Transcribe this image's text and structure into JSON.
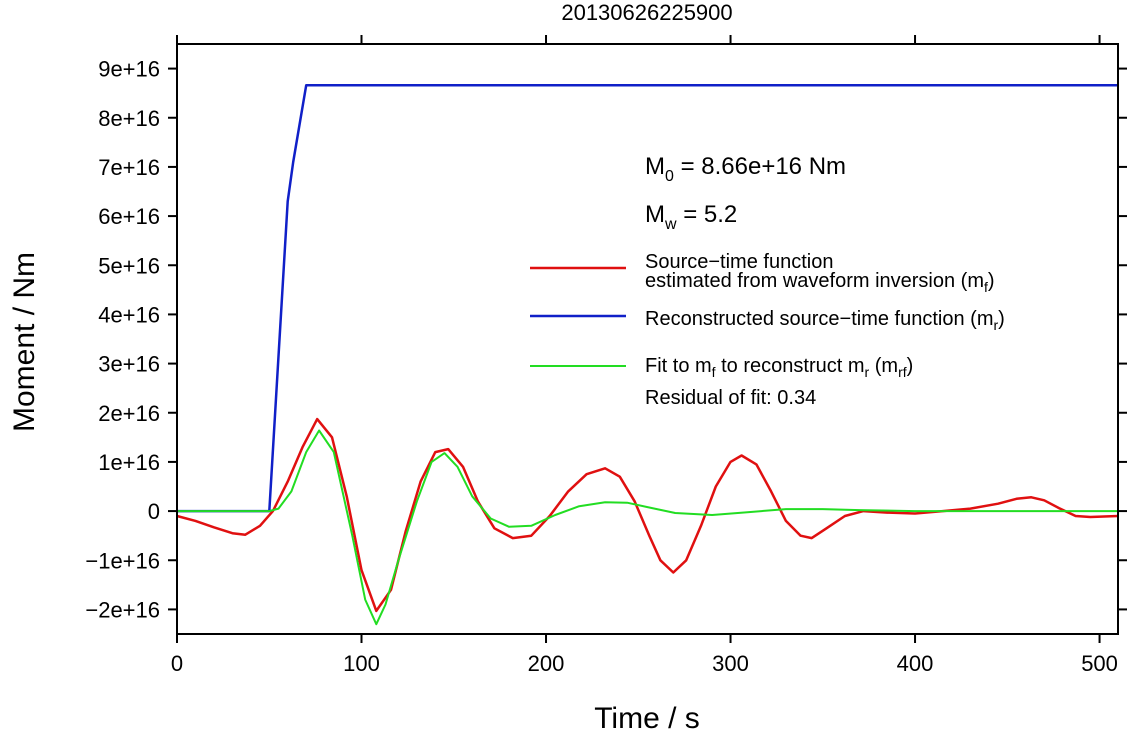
{
  "chart_data": {
    "type": "line",
    "title": "20130626225900",
    "xlabel": "Time / s",
    "ylabel": "Moment / Nm",
    "xlim": [
      0,
      510
    ],
    "ylim": [
      -2.5e+16,
      9.5e+16
    ],
    "x_ticks": [
      0,
      100,
      200,
      300,
      400,
      500
    ],
    "x_tick_labels": [
      "0",
      "100",
      "200",
      "300",
      "400",
      "500"
    ],
    "y_ticks": [
      -2e+16,
      -1e+16,
      0,
      1e+16,
      2e+16,
      3e+16,
      4e+16,
      5e+16,
      6e+16,
      7e+16,
      8e+16,
      9e+16
    ],
    "y_tick_labels": [
      "−2e+16",
      "−1e+16",
      "0",
      "1e+16",
      "2e+16",
      "3e+16",
      "4e+16",
      "5e+16",
      "6e+16",
      "7e+16",
      "8e+16",
      "9e+16"
    ],
    "annotations": {
      "m0": {
        "base": "M",
        "sub": "0",
        "text": " = 8.66e+16 Nm"
      },
      "mw": {
        "base": "M",
        "sub": "w",
        "text": " = 5.2"
      },
      "residual": "Residual of fit: 0.34"
    },
    "legend": {
      "position": "right",
      "entries": [
        {
          "line1": "Source−time function",
          "line2": "estimated from waveform inversion (m",
          "sub": "f",
          "tail": ")",
          "color": "#e01010"
        },
        {
          "line1": "Reconstructed source−time function (m",
          "sub": "r",
          "tail": ")",
          "color": "#1020c8"
        },
        {
          "line1": "Fit to m",
          "sub_a": "f",
          "mid": " to reconstruct m",
          "sub_b": "r",
          "mid2": " (m",
          "sub_c": "rf",
          "tail": ")",
          "color": "#22dd22"
        }
      ]
    },
    "series": [
      {
        "key": "m_f",
        "color": "#e01010",
        "x": [
          0,
          10,
          20,
          30,
          37,
          45,
          52,
          60,
          68,
          76,
          84,
          92,
          100,
          108,
          116,
          124,
          132,
          140,
          147,
          155,
          163,
          172,
          182,
          192,
          202,
          212,
          222,
          232,
          240,
          248,
          256,
          262,
          269,
          276,
          284,
          292,
          300,
          306,
          314,
          322,
          330,
          338,
          344,
          352,
          362,
          372,
          385,
          400,
          415,
          430,
          445,
          455,
          463,
          470,
          478,
          487,
          495,
          510
        ],
        "y": [
          -1000000000000000.0,
          -2000000000000000.0,
          -3300000000000000.0,
          -4500000000000000.0,
          -4800000000000000.0,
          -3000000000000000.0,
          0,
          6000000000000000.0,
          1.3e+16,
          1.87e+16,
          1.5e+16,
          3000000000000000.0,
          -1.2e+16,
          -2.03e+16,
          -1.6e+16,
          -4000000000000000.0,
          6000000000000000.0,
          1.2e+16,
          1.26e+16,
          9000000000000000.0,
          2000000000000000.0,
          -3500000000000000.0,
          -5500000000000000.0,
          -5000000000000000.0,
          -1000000000000000.0,
          4000000000000000.0,
          7500000000000000.0,
          8700000000000000.0,
          7000000000000000.0,
          2000000000000000.0,
          -5000000000000000.0,
          -1e+16,
          -1.25e+16,
          -1e+16,
          -3000000000000000.0,
          5000000000000000.0,
          1e+16,
          1.13e+16,
          9500000000000000.0,
          4000000000000000.0,
          -2000000000000000.0,
          -5000000000000000.0,
          -5500000000000000.0,
          -3500000000000000.0,
          -1000000000000000.0,
          0,
          -300000000000000.0,
          -500000000000000.0,
          0,
          500000000000000.0,
          1500000000000000.0,
          2500000000000000.0,
          2800000000000000.0,
          2200000000000000.0,
          600000000000000.0,
          -1000000000000000.0,
          -1200000000000000.0,
          -1000000000000000.0
        ]
      },
      {
        "key": "m_r",
        "color": "#1020c8",
        "x": [
          0,
          50,
          60,
          63,
          70,
          80,
          510
        ],
        "y": [
          0,
          0,
          6.3e+16,
          7.1e+16,
          8.66e+16,
          8.66e+16,
          8.66e+16
        ]
      },
      {
        "key": "m_rf",
        "color": "#22dd22",
        "x": [
          0,
          40,
          50,
          55,
          62,
          70,
          77,
          85,
          95,
          102,
          108,
          113,
          120,
          130,
          138,
          145,
          152,
          160,
          170,
          180,
          192,
          205,
          218,
          232,
          244,
          255,
          270,
          290,
          310,
          330,
          350,
          370,
          400,
          440,
          480,
          510
        ],
        "y": [
          0,
          0,
          0,
          500000000000000.0,
          4000000000000000.0,
          1.2e+16,
          1.64e+16,
          1.2e+16,
          -5000000000000000.0,
          -1.8e+16,
          -2.3e+16,
          -1.9e+16,
          -1e+16,
          2000000000000000.0,
          1e+16,
          1.18e+16,
          9000000000000000.0,
          3000000000000000.0,
          -1500000000000000.0,
          -3200000000000000.0,
          -3000000000000000.0,
          -800000000000000.0,
          1000000000000000.0,
          1800000000000000.0,
          1700000000000000.0,
          800000000000000.0,
          -400000000000000.0,
          -800000000000000.0,
          -200000000000000.0,
          400000000000000.0,
          400000000000000.0,
          200000000000000.0,
          0,
          0,
          0,
          0
        ]
      }
    ]
  }
}
